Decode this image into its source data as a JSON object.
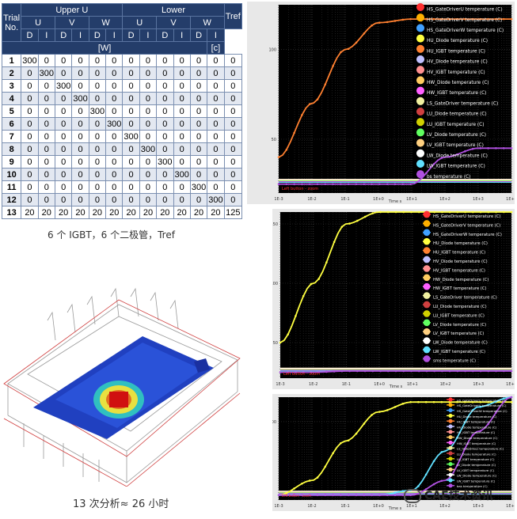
{
  "table": {
    "groups": [
      "Upper U",
      "Lower"
    ],
    "phase_headers": [
      "U",
      "V",
      "W",
      "U",
      "V",
      "W"
    ],
    "trial_label_1": "Trial",
    "trial_label_2": "No.",
    "tref": "Tref",
    "sub_headers": [
      "D",
      "I",
      "D",
      "I",
      "D",
      "I",
      "D",
      "I",
      "D",
      "I",
      "D",
      "I"
    ],
    "unit_w": "[W]",
    "unit_c": "[c]",
    "rows": [
      [
        "1",
        "300",
        "0",
        "0",
        "0",
        "0",
        "0",
        "0",
        "0",
        "0",
        "0",
        "0",
        "0",
        "0"
      ],
      [
        "2",
        "0",
        "300",
        "0",
        "0",
        "0",
        "0",
        "0",
        "0",
        "0",
        "0",
        "0",
        "0",
        "0"
      ],
      [
        "3",
        "0",
        "0",
        "300",
        "0",
        "0",
        "0",
        "0",
        "0",
        "0",
        "0",
        "0",
        "0",
        "0"
      ],
      [
        "4",
        "0",
        "0",
        "0",
        "300",
        "0",
        "0",
        "0",
        "0",
        "0",
        "0",
        "0",
        "0",
        "0"
      ],
      [
        "5",
        "0",
        "0",
        "0",
        "0",
        "300",
        "0",
        "0",
        "0",
        "0",
        "0",
        "0",
        "0",
        "0"
      ],
      [
        "6",
        "0",
        "0",
        "0",
        "0",
        "0",
        "300",
        "0",
        "0",
        "0",
        "0",
        "0",
        "0",
        "0"
      ],
      [
        "7",
        "0",
        "0",
        "0",
        "0",
        "0",
        "0",
        "300",
        "0",
        "0",
        "0",
        "0",
        "0",
        "0"
      ],
      [
        "8",
        "0",
        "0",
        "0",
        "0",
        "0",
        "0",
        "0",
        "300",
        "0",
        "0",
        "0",
        "0",
        "0"
      ],
      [
        "9",
        "0",
        "0",
        "0",
        "0",
        "0",
        "0",
        "0",
        "0",
        "300",
        "0",
        "0",
        "0",
        "0"
      ],
      [
        "10",
        "0",
        "0",
        "0",
        "0",
        "0",
        "0",
        "0",
        "0",
        "0",
        "300",
        "0",
        "0",
        "0"
      ],
      [
        "11",
        "0",
        "0",
        "0",
        "0",
        "0",
        "0",
        "0",
        "0",
        "0",
        "0",
        "300",
        "0",
        "0"
      ],
      [
        "12",
        "0",
        "0",
        "0",
        "0",
        "0",
        "0",
        "0",
        "0",
        "0",
        "0",
        "0",
        "300",
        "0"
      ],
      [
        "13",
        "20",
        "20",
        "20",
        "20",
        "20",
        "20",
        "20",
        "20",
        "20",
        "20",
        "20",
        "20",
        "125"
      ]
    ]
  },
  "captions": {
    "table": "6 个 IGBT，6 个二极管，Tref",
    "model": "13 次分析≈ 26 小时"
  },
  "watermark": "CAE技术资讯",
  "chart_data": [
    {
      "type": "line",
      "xscale": "log",
      "x": [
        0.001,
        0.01,
        0.1,
        1,
        10,
        100,
        1000,
        10000
      ],
      "xticks": [
        "1E-3",
        "1E-2",
        "1E-1",
        "1E+0",
        "1E+1",
        "1E+2",
        "1E+3",
        "1E+4"
      ],
      "yticks": [
        "50",
        "100"
      ],
      "ylim": [
        20,
        125
      ],
      "xlabel": "Time s",
      "note": "Left button - zoom",
      "legend": [
        "HS_GateDriverU temperature (C)",
        "HS_GateDriverV temperature (C)",
        "HS_GateDriverW temperature (C)",
        "HU_Diode temperature (C)",
        "HU_IGBT temperature (C)",
        "HV_Diode temperature (C)",
        "HV_IGBT temperature (C)",
        "HW_Diode temperature (C)",
        "HW_IGBT temperature (C)",
        "LS_GateDriver temperature (C)",
        "LU_Diode temperature (C)",
        "LU_IGBT temperature (C)",
        "LV_Diode temperature (C)",
        "LV_IGBT temperature (C)",
        "LW_Diode temperature (C)",
        "LW_IGBT temperature (C)",
        "bs temperature (C)"
      ],
      "colors": [
        "#ff3030",
        "#ffb000",
        "#40a0ff",
        "#ffff40",
        "#ff8030",
        "#c0c0ff",
        "#ff9090",
        "#ffcc60",
        "#ff60ff",
        "#f0f0a0",
        "#d04040",
        "#d0d000",
        "#60ff60",
        "#ffd080",
        "#ffffff",
        "#60e0ff",
        "#b050e0"
      ],
      "series": [
        {
          "name": "HU_IGBT temperature (C)",
          "values": [
            40,
            70,
            100,
            115,
            117,
            117,
            117,
            117
          ]
        },
        {
          "name": "bs temperature (C)",
          "values": [
            25,
            25,
            25,
            25,
            25,
            40,
            45,
            45
          ]
        }
      ]
    },
    {
      "type": "line",
      "xscale": "log",
      "x": [
        0.001,
        0.01,
        0.1,
        1,
        10,
        100,
        1000,
        10000
      ],
      "xticks": [
        "1E-3",
        "1E-2",
        "1E-1",
        "1E+0",
        "1E+1",
        "1E+2",
        "1E+3",
        "1E+4"
      ],
      "yticks": [
        "50",
        "100",
        "150"
      ],
      "ylim": [
        20,
        160
      ],
      "xlabel": "Time s",
      "note": "Left button - zoom",
      "legend": [
        "HS_GateDriverU temperature (C)",
        "HS_GateDriverV temperature (C)",
        "HS_GateDriverW temperature (C)",
        "HU_Diode temperature (C)",
        "HU_IGBT temperature (C)",
        "HV_Diode temperature (C)",
        "HV_IGBT temperature (C)",
        "HW_Diode temperature (C)",
        "HW_IGBT temperature (C)",
        "LS_GateDriver temperature (C)",
        "LU_Diode temperature (C)",
        "LU_IGBT temperature (C)",
        "LV_Diode temperature (C)",
        "LV_IGBT temperature (C)",
        "LW_Diode temperature (C)",
        "LW_IGBT temperature (C)",
        "sms temperature (C)"
      ],
      "colors": [
        "#ff3030",
        "#ffb000",
        "#40a0ff",
        "#ffff40",
        "#ff8030",
        "#c0c0ff",
        "#ff9090",
        "#ffcc60",
        "#ff60ff",
        "#f0f0a0",
        "#d04040",
        "#d0d000",
        "#60ff60",
        "#ffd080",
        "#ffffff",
        "#60e0ff",
        "#b050e0"
      ],
      "series": [
        {
          "name": "HU_Diode temperature (C)",
          "values": [
            50,
            100,
            150,
            160,
            160,
            160,
            160,
            160
          ]
        },
        {
          "name": "sms temperature (C)",
          "values": [
            25,
            25,
            26,
            26,
            26,
            26,
            26,
            26
          ]
        }
      ]
    },
    {
      "type": "line",
      "xscale": "log",
      "x": [
        0.001,
        0.01,
        0.1,
        1,
        10,
        100,
        1000,
        10000
      ],
      "xticks": [
        "1E-3",
        "1E-2",
        "1E-1",
        "1E+0",
        "1E+1",
        "1E+2",
        "1E+3",
        "1E+4"
      ],
      "yticks": [
        "100"
      ],
      "ylim": [
        20,
        125
      ],
      "xlabel": "Time s",
      "note": "Left button - zoom",
      "legend": [
        "HS_GateDriverU temperature (C)",
        "HS_GateDriverV temperature (C)",
        "HS_GateDriverW temperature (C)",
        "HU_Diode temperature (C)",
        "HU_IGBT temperature (C)",
        "HV_Diode temperature (C)",
        "HV_IGBT temperature (C)",
        "HW_Diode temperature (C)",
        "HW_IGBT temperature (C)",
        "LS_GateDriver temperature (C)",
        "LU_Diode temperature (C)",
        "LU_IGBT temperature (C)",
        "LV_Diode temperature (C)",
        "LV_IGBT temperature (C)",
        "LW_Diode temperature (C)",
        "LW_IGBT temperature (C)",
        "bas temperature (C)"
      ],
      "colors": [
        "#ff3030",
        "#ffb000",
        "#40a0ff",
        "#ffff40",
        "#ff8030",
        "#c0c0ff",
        "#ff9090",
        "#ffcc60",
        "#ff60ff",
        "#f0f0a0",
        "#d04040",
        "#d0d000",
        "#60ff60",
        "#ffd080",
        "#ffffff",
        "#60e0ff",
        "#b050e0"
      ],
      "series": [
        {
          "name": "HU_Diode temperature (C)",
          "values": [
            25,
            40,
            80,
            110,
            120,
            120,
            120,
            120
          ]
        },
        {
          "name": "LW_IGBT temperature (C)",
          "values": [
            25,
            25,
            25,
            25,
            30,
            70,
            115,
            125
          ]
        },
        {
          "name": "bas temperature (C)",
          "values": [
            25,
            25,
            25,
            25,
            25,
            40,
            90,
            125
          ]
        }
      ]
    }
  ]
}
